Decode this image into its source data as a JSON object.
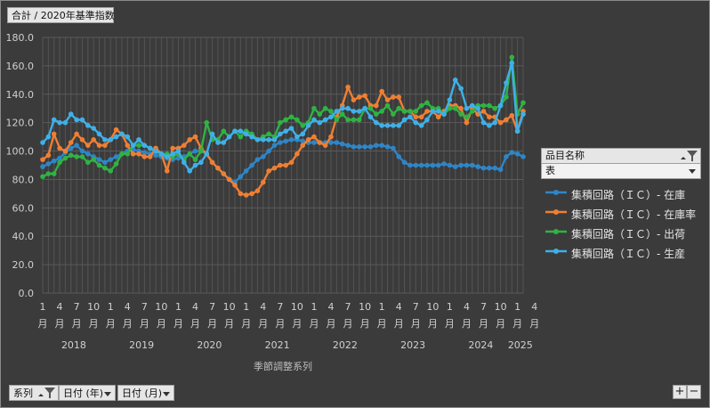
{
  "header_button": "合計 / 2020年基準指数",
  "chart_data": {
    "type": "line",
    "xlabel": "季節調整系列",
    "ylim": [
      0,
      180
    ],
    "yticks": [
      "180.0",
      "160.0",
      "140.0",
      "120.0",
      "100.0",
      "80.0",
      "60.0",
      "40.0",
      "20.0",
      "0.0"
    ],
    "month_ticks": [
      "1",
      "4",
      "7",
      "10",
      "1",
      "4",
      "7",
      "10",
      "1",
      "4",
      "7",
      "10",
      "1",
      "4",
      "7",
      "10",
      "1",
      "4",
      "7",
      "10",
      "1",
      "4",
      "7",
      "10",
      "1",
      "4",
      "7",
      "10",
      "1",
      "4"
    ],
    "month_suffix": "月",
    "years": [
      "2018",
      "2019",
      "2020",
      "2021",
      "2022",
      "2023",
      "2024",
      "2025"
    ],
    "series": [
      {
        "name": "集積回路（ＩＣ）- 在庫",
        "color": "#2e86c8",
        "values": [
          89,
          91,
          93,
          95,
          99,
          102,
          104,
          100,
          98,
          96,
          94,
          92,
          94,
          96,
          98,
          100,
          101,
          100,
          99,
          98,
          97,
          96,
          95,
          94,
          95,
          96,
          98,
          100,
          100,
          98,
          92,
          88,
          84,
          80,
          78,
          82,
          86,
          90,
          94,
          96,
          100,
          104,
          106,
          107,
          108,
          108,
          107,
          106,
          106,
          106,
          106,
          106,
          106,
          105,
          104,
          103,
          103,
          103,
          103,
          104,
          104,
          103,
          102,
          96,
          92,
          90,
          90,
          90,
          90,
          90,
          90,
          91,
          90,
          89,
          90,
          90,
          90,
          89,
          88,
          88,
          88,
          87,
          96,
          99,
          98,
          96
        ]
      },
      {
        "name": "集積回路（ＩＣ）- 在庫率",
        "color": "#f07f33",
        "values": [
          94,
          97,
          112,
          102,
          100,
          106,
          112,
          108,
          104,
          108,
          104,
          104,
          108,
          115,
          112,
          104,
          98,
          98,
          96,
          96,
          102,
          98,
          86,
          102,
          102,
          104,
          108,
          110,
          102,
          98,
          92,
          88,
          84,
          80,
          76,
          70,
          69,
          70,
          72,
          78,
          86,
          88,
          90,
          90,
          92,
          98,
          104,
          108,
          110,
          106,
          104,
          110,
          124,
          132,
          145,
          136,
          138,
          139,
          132,
          132,
          142,
          136,
          138,
          138,
          128,
          128,
          124,
          124,
          128,
          128,
          124,
          128,
          132,
          132,
          130,
          120,
          130,
          126,
          128,
          124,
          124,
          120,
          122,
          125,
          114,
          128
        ]
      },
      {
        "name": "集積回路（ＩＣ）- 出荷",
        "color": "#2fb344",
        "values": [
          82,
          84,
          84,
          92,
          95,
          97,
          96,
          96,
          92,
          94,
          90,
          88,
          86,
          91,
          98,
          98,
          104,
          104,
          104,
          102,
          100,
          98,
          98,
          96,
          98,
          94,
          98,
          94,
          100,
          120,
          108,
          108,
          114,
          110,
          114,
          110,
          114,
          112,
          108,
          110,
          112,
          110,
          120,
          122,
          124,
          122,
          118,
          120,
          130,
          126,
          130,
          128,
          122,
          126,
          122,
          122,
          122,
          130,
          130,
          126,
          128,
          132,
          126,
          130,
          128,
          128,
          128,
          132,
          134,
          130,
          130,
          126,
          130,
          130,
          126,
          124,
          128,
          132,
          132,
          132,
          130,
          132,
          138,
          166,
          126,
          134
        ]
      },
      {
        "name": "集積回路（ＩＣ）- 生産",
        "color": "#3fb0e8",
        "values": [
          106,
          110,
          122,
          120,
          120,
          126,
          122,
          122,
          118,
          116,
          112,
          108,
          108,
          110,
          112,
          110,
          104,
          108,
          104,
          102,
          100,
          98,
          96,
          98,
          100,
          92,
          86,
          90,
          92,
          98,
          112,
          106,
          106,
          110,
          114,
          114,
          112,
          110,
          108,
          108,
          108,
          108,
          112,
          114,
          116,
          110,
          112,
          118,
          122,
          120,
          122,
          124,
          128,
          130,
          130,
          128,
          128,
          130,
          124,
          120,
          118,
          118,
          118,
          118,
          122,
          124,
          120,
          118,
          122,
          128,
          128,
          126,
          136,
          150,
          144,
          130,
          132,
          130,
          120,
          118,
          120,
          132,
          148,
          162,
          114,
          126
        ]
      }
    ]
  },
  "legend": {
    "title": "品目名称",
    "subfilter": "表",
    "filter_icon": "filter-icon",
    "dropdown_icon": "dropdown-arrow-icon"
  },
  "bottom_fields": {
    "series_label": "系列",
    "year_label": "日付 (年)",
    "month_label": "日付 (月)"
  },
  "zoom": {
    "plus": "+",
    "minus": "−"
  }
}
